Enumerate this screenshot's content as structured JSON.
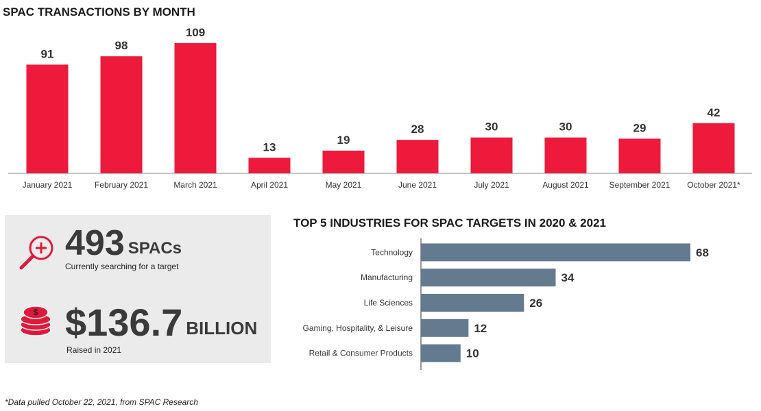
{
  "chart_data": [
    {
      "type": "bar",
      "title": "SPAC TRANSACTIONS BY MONTH",
      "categories": [
        "January 2021",
        "February 2021",
        "March 2021",
        "April 2021",
        "May 2021",
        "June 2021",
        "July 2021",
        "August 2021",
        "September 2021",
        "October 2021*"
      ],
      "values": [
        91,
        98,
        109,
        13,
        19,
        28,
        30,
        30,
        29,
        42
      ],
      "color": "#ed1a3b"
    },
    {
      "type": "barh",
      "title": "TOP 5 INDUSTRIES FOR SPAC TARGETS IN 2020 & 2021",
      "categories": [
        "Technology",
        "Manufacturing",
        "Life Sciences",
        "Gaming, Hospitality, & Leisure",
        "Retail & Consumer Products"
      ],
      "values": [
        68,
        34,
        26,
        12,
        10
      ],
      "color": "#647a8f"
    }
  ],
  "stats": [
    {
      "value": "493",
      "unit": "SPACs",
      "label": "Currently searching for a target"
    },
    {
      "value": "$136.7",
      "unit": "BILLION",
      "label": "Raised in 2021"
    }
  ],
  "footnote": "*Data pulled October 22, 2021, from SPAC Research"
}
